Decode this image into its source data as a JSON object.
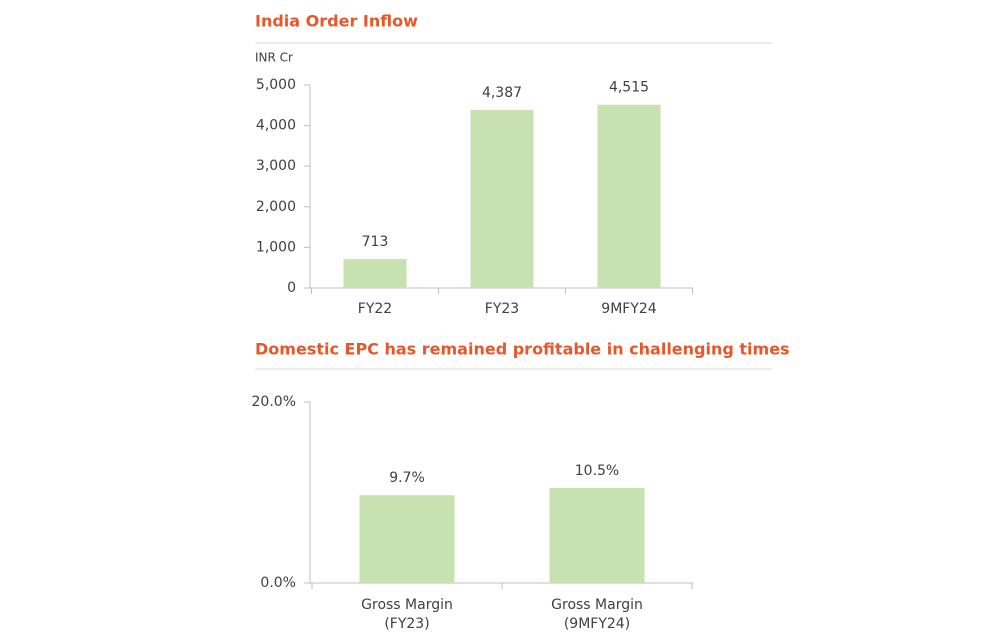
{
  "chart_data": [
    {
      "type": "bar",
      "title": "India Order Inflow",
      "y_label": "INR Cr",
      "categories": [
        "FY22",
        "FY23",
        "9MFY24"
      ],
      "values": [
        713,
        4387,
        4515
      ],
      "value_labels": [
        "713",
        "4,387",
        "4,515"
      ],
      "color": "#c7e2b0",
      "ylim": [
        0,
        5000
      ],
      "yticks": [
        0,
        {
          "value": 1000,
          "label": "1,000"
        },
        {
          "value": 2000,
          "label": "2,000"
        },
        {
          "value": 3000,
          "label": "3,000"
        },
        {
          "value": 4000,
          "label": "4,000"
        },
        {
          "value": 5000,
          "label": "5,000"
        }
      ]
    },
    {
      "type": "bar",
      "title": "Domestic EPC has remained profitable in challenging times",
      "categories": [
        "Gross Margin (FY23)",
        "Gross Margin (9MFY24)"
      ],
      "values": [
        9.7,
        10.5
      ],
      "value_labels": [
        "9.7%",
        "10.5%"
      ],
      "color": "#c7e2b0",
      "ylim": [
        0,
        20
      ],
      "yticks": [
        {
          "value": 0,
          "label": "0.0%"
        },
        {
          "value": 20,
          "label": "20.0%"
        }
      ]
    }
  ]
}
